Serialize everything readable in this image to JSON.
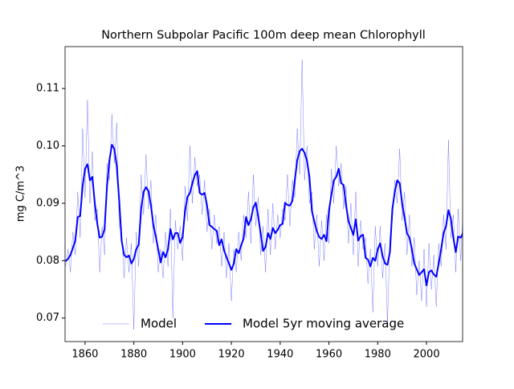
{
  "chart_data": {
    "type": "line",
    "title": "Northern Subpolar Pacific 100m deep mean Chlorophyll",
    "ylabel": "mg C/m^3",
    "x": [
      1852,
      1853,
      1854,
      1855,
      1856,
      1857,
      1858,
      1859,
      1860,
      1861,
      1862,
      1863,
      1864,
      1865,
      1866,
      1867,
      1868,
      1869,
      1870,
      1871,
      1872,
      1873,
      1874,
      1875,
      1876,
      1877,
      1878,
      1879,
      1880,
      1881,
      1882,
      1883,
      1884,
      1885,
      1886,
      1887,
      1888,
      1889,
      1890,
      1891,
      1892,
      1893,
      1894,
      1895,
      1896,
      1897,
      1898,
      1899,
      1900,
      1901,
      1902,
      1903,
      1904,
      1905,
      1906,
      1907,
      1908,
      1909,
      1910,
      1911,
      1912,
      1913,
      1914,
      1915,
      1916,
      1917,
      1918,
      1919,
      1920,
      1921,
      1922,
      1923,
      1924,
      1925,
      1926,
      1927,
      1928,
      1929,
      1930,
      1931,
      1932,
      1933,
      1934,
      1935,
      1936,
      1937,
      1938,
      1939,
      1940,
      1941,
      1942,
      1943,
      1944,
      1945,
      1946,
      1947,
      1948,
      1949,
      1950,
      1951,
      1952,
      1953,
      1954,
      1955,
      1956,
      1957,
      1958,
      1959,
      1960,
      1961,
      1962,
      1963,
      1964,
      1965,
      1966,
      1967,
      1968,
      1969,
      1970,
      1971,
      1972,
      1973,
      1974,
      1975,
      1976,
      1977,
      1978,
      1979,
      1980,
      1981,
      1982,
      1983,
      1984,
      1985,
      1986,
      1987,
      1988,
      1989,
      1990,
      1991,
      1992,
      1993,
      1994,
      1995,
      1996,
      1997,
      1998,
      1999,
      2000,
      2001,
      2002,
      2003,
      2004,
      2005,
      2006,
      2007,
      2008,
      2009,
      2010,
      2011,
      2012,
      2013,
      2014,
      2015
    ],
    "series": [
      {
        "name": "Model",
        "color": "#0000ff",
        "opacity": 0.5,
        "width": 0.5,
        "values": [
          0.079,
          0.082,
          0.078,
          0.085,
          0.081,
          0.092,
          0.084,
          0.103,
          0.091,
          0.108,
          0.09,
          0.099,
          0.087,
          0.089,
          0.078,
          0.086,
          0.081,
          0.097,
          0.094,
          0.1055,
          0.097,
          0.104,
          0.086,
          0.085,
          0.077,
          0.084,
          0.078,
          0.083,
          0.068,
          0.085,
          0.079,
          0.095,
          0.088,
          0.0985,
          0.089,
          0.094,
          0.083,
          0.088,
          0.078,
          0.082,
          0.077,
          0.085,
          0.079,
          0.089,
          0.07,
          0.087,
          0.082,
          0.086,
          0.08,
          0.093,
          0.087,
          0.1,
          0.09,
          0.098,
          0.093,
          0.095,
          0.088,
          0.094,
          0.085,
          0.089,
          0.082,
          0.088,
          0.083,
          0.086,
          0.079,
          0.085,
          0.077,
          0.083,
          0.073,
          0.082,
          0.078,
          0.085,
          0.08,
          0.088,
          0.084,
          0.092,
          0.083,
          0.095,
          0.086,
          0.091,
          0.081,
          0.086,
          0.078,
          0.089,
          0.081,
          0.09,
          0.082,
          0.088,
          0.084,
          0.089,
          0.087,
          0.095,
          0.086,
          0.094,
          0.091,
          0.103,
          0.095,
          0.115,
          0.094,
          0.1,
          0.09,
          0.092,
          0.082,
          0.088,
          0.079,
          0.087,
          0.08,
          0.088,
          0.083,
          0.096,
          0.09,
          0.1,
          0.093,
          0.097,
          0.089,
          0.093,
          0.083,
          0.09,
          0.081,
          0.092,
          0.079,
          0.087,
          0.082,
          0.084,
          0.076,
          0.082,
          0.071,
          0.086,
          0.079,
          0.086,
          0.077,
          0.083,
          0.069,
          0.084,
          0.087,
          0.094,
          0.09,
          0.0995,
          0.087,
          0.092,
          0.081,
          0.088,
          0.079,
          0.084,
          0.074,
          0.08,
          0.073,
          0.082,
          0.072,
          0.083,
          0.075,
          0.081,
          0.072,
          0.083,
          0.079,
          0.088,
          0.082,
          0.101,
          0.084,
          0.088,
          0.078,
          0.089,
          0.08,
          0.089
        ]
      },
      {
        "name": "Model 5yr moving average",
        "color": "#0000ff",
        "opacity": 1,
        "width": 2,
        "values": [
          0.0799,
          0.0803,
          0.081,
          0.0822,
          0.0835,
          0.0876,
          0.0878,
          0.093,
          0.096,
          0.0968,
          0.094,
          0.0946,
          0.09,
          0.0865,
          0.084,
          0.0842,
          0.0855,
          0.093,
          0.0975,
          0.1002,
          0.0995,
          0.0965,
          0.0905,
          0.0835,
          0.081,
          0.0806,
          0.0809,
          0.0795,
          0.0803,
          0.082,
          0.0828,
          0.089,
          0.092,
          0.0928,
          0.0921,
          0.0897,
          0.0862,
          0.0842,
          0.082,
          0.0797,
          0.0815,
          0.0806,
          0.082,
          0.0855,
          0.0837,
          0.0848,
          0.0848,
          0.0831,
          0.0841,
          0.0887,
          0.0911,
          0.0918,
          0.0935,
          0.0949,
          0.0956,
          0.0918,
          0.0915,
          0.0918,
          0.0897,
          0.0862,
          0.0859,
          0.0855,
          0.0852,
          0.0827,
          0.0837,
          0.0818,
          0.0806,
          0.0795,
          0.0784,
          0.0795,
          0.082,
          0.0813,
          0.0827,
          0.0838,
          0.0876,
          0.0862,
          0.0872,
          0.0893,
          0.0901,
          0.0876,
          0.0848,
          0.0817,
          0.0824,
          0.0848,
          0.0838,
          0.0857,
          0.0848,
          0.0854,
          0.0862,
          0.0864,
          0.0901,
          0.0897,
          0.0896,
          0.0904,
          0.094,
          0.0975,
          0.0991,
          0.0995,
          0.0988,
          0.0974,
          0.0946,
          0.0887,
          0.0868,
          0.0852,
          0.0841,
          0.0838,
          0.0845,
          0.0834,
          0.0887,
          0.0915,
          0.094,
          0.0946,
          0.096,
          0.0935,
          0.0932,
          0.0897,
          0.0869,
          0.0857,
          0.0845,
          0.0872,
          0.0835,
          0.0843,
          0.0845,
          0.0805,
          0.0802,
          0.079,
          0.0805,
          0.08,
          0.082,
          0.083,
          0.0808,
          0.0795,
          0.0793,
          0.0815,
          0.089,
          0.092,
          0.094,
          0.0935,
          0.09,
          0.0875,
          0.0848,
          0.084,
          0.082,
          0.0795,
          0.0785,
          0.0775,
          0.078,
          0.0785,
          0.0757,
          0.078,
          0.0783,
          0.0776,
          0.0772,
          0.0795,
          0.082,
          0.0848,
          0.086,
          0.0888,
          0.0873,
          0.084,
          0.0815,
          0.0842,
          0.084,
          0.0848
        ]
      }
    ],
    "xlim": [
      1851.8,
      2014.8
    ],
    "ylim": [
      0.0659,
      0.1173
    ],
    "xticks": [
      1860,
      1880,
      1900,
      1920,
      1940,
      1960,
      1980,
      2000
    ],
    "yticks": [
      0.07,
      0.08,
      0.09,
      {
        "value": 0.1,
        "label": "0.10"
      },
      0.11
    ],
    "legend": "lower center"
  }
}
